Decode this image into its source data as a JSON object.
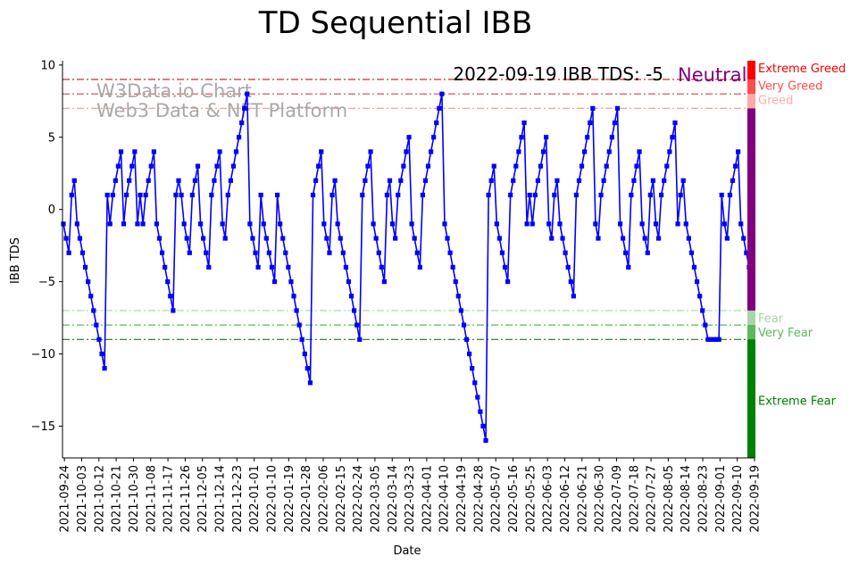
{
  "chart_data": {
    "type": "line",
    "title": "TD Sequential IBB",
    "xlabel": "Date",
    "ylabel": "IBB TDS",
    "ylim": [
      -17.2,
      10.3
    ],
    "yticks": [
      10,
      5,
      0,
      -5,
      -10,
      -15
    ],
    "x_start": "2021-09-23",
    "x_end": "2022-09-19",
    "xticks": [
      "2021-09-24",
      "2021-10-03",
      "2021-10-12",
      "2021-10-21",
      "2021-10-30",
      "2021-11-08",
      "2021-11-17",
      "2021-11-26",
      "2021-12-05",
      "2021-12-14",
      "2021-12-23",
      "2022-01-01",
      "2022-01-10",
      "2022-01-19",
      "2022-01-28",
      "2022-02-06",
      "2022-02-15",
      "2022-02-24",
      "2022-03-05",
      "2022-03-14",
      "2022-03-23",
      "2022-04-01",
      "2022-04-10",
      "2022-04-19",
      "2022-04-28",
      "2022-05-07",
      "2022-05-16",
      "2022-05-25",
      "2022-06-03",
      "2022-06-12",
      "2022-06-21",
      "2022-06-30",
      "2022-07-09",
      "2022-07-18",
      "2022-07-27",
      "2022-08-05",
      "2022-08-14",
      "2022-08-23",
      "2022-09-01",
      "2022-09-10",
      "2022-09-19"
    ],
    "series": [
      {
        "color": "#0000ff",
        "values": [
          -1,
          -2,
          -3,
          1,
          2,
          -1,
          -2,
          -3,
          -4,
          -5,
          -6,
          -7,
          -8,
          -9,
          -10,
          -11,
          1,
          -1,
          1,
          2,
          3,
          4,
          -1,
          1,
          2,
          3,
          4,
          -1,
          1,
          -1,
          1,
          2,
          3,
          4,
          -1,
          -2,
          -3,
          -4,
          -5,
          -6,
          -7,
          1,
          2,
          1,
          -1,
          -2,
          -3,
          1,
          2,
          3,
          -1,
          -2,
          -3,
          -4,
          1,
          2,
          3,
          4,
          -1,
          -2,
          1,
          2,
          3,
          4,
          5,
          6,
          7,
          8,
          -1,
          -2,
          -3,
          -4,
          1,
          -1,
          -2,
          -3,
          -4,
          -5,
          1,
          -1,
          -2,
          -3,
          -4,
          -5,
          -6,
          -7,
          -8,
          -9,
          -10,
          -11,
          -12,
          1,
          2,
          3,
          4,
          -1,
          -2,
          -3,
          1,
          2,
          -1,
          -2,
          -3,
          -4,
          -5,
          -6,
          -7,
          -8,
          -9,
          1,
          2,
          3,
          4,
          -1,
          -2,
          -3,
          -4,
          -5,
          1,
          2,
          -1,
          -2,
          1,
          2,
          3,
          4,
          5,
          -1,
          -2,
          -3,
          -4,
          1,
          2,
          3,
          4,
          5,
          6,
          7,
          8,
          -1,
          -2,
          -3,
          -4,
          -5,
          -6,
          -7,
          -8,
          -9,
          -10,
          -11,
          -12,
          -13,
          -14,
          -15,
          -16,
          1,
          2,
          3,
          -1,
          -2,
          -3,
          -4,
          -5,
          1,
          2,
          3,
          4,
          5,
          6,
          -1,
          1,
          -1,
          1,
          2,
          3,
          4,
          5,
          -1,
          -2,
          1,
          2,
          -1,
          -2,
          -3,
          -4,
          -5,
          -6,
          1,
          2,
          3,
          4,
          5,
          6,
          7,
          -1,
          -2,
          1,
          2,
          3,
          4,
          5,
          6,
          7,
          -1,
          -2,
          -3,
          -4,
          1,
          2,
          3,
          4,
          -1,
          -2,
          -3,
          1,
          2,
          -1,
          -2,
          1,
          2,
          3,
          4,
          5,
          6,
          -1,
          1,
          2,
          -1,
          -2,
          -3,
          -4,
          -5,
          -6,
          -7,
          -8,
          -9,
          -9,
          -9,
          -9,
          -9,
          1,
          -1,
          -2,
          1,
          2,
          3,
          4,
          -1,
          -2,
          -3,
          -4,
          -5
        ]
      }
    ],
    "levels": [
      {
        "value": 9,
        "color": "#d62728",
        "opacity": 1
      },
      {
        "value": 8,
        "color": "#e05555",
        "opacity": 1
      },
      {
        "value": 7,
        "color": "#f2a0a0",
        "opacity": 1
      },
      {
        "value": -7,
        "color": "#a6d6a6",
        "opacity": 1
      },
      {
        "value": -8,
        "color": "#5cb85c",
        "opacity": 1
      },
      {
        "value": -9,
        "color": "#1a7a1a",
        "opacity": 1
      }
    ],
    "side_bar": [
      {
        "from": 10.3,
        "to": 9,
        "color": "#ff0000"
      },
      {
        "from": 9,
        "to": 8,
        "color": "#ff4d4d"
      },
      {
        "from": 8,
        "to": 7,
        "color": "#ffaaaa"
      },
      {
        "from": 7,
        "to": -7,
        "color": "#800080"
      },
      {
        "from": -7,
        "to": -8,
        "color": "#a6d6a6"
      },
      {
        "from": -8,
        "to": -9,
        "color": "#5cb85c"
      },
      {
        "from": -9,
        "to": -17.2,
        "color": "#008000"
      }
    ],
    "zone_labels": [
      {
        "text": "Extreme Greed",
        "value": 9.8,
        "color": "#ff0000"
      },
      {
        "text": "Very Greed",
        "value": 8.6,
        "color": "#ff4d4d"
      },
      {
        "text": "Greed",
        "value": 7.6,
        "color": "#ffaaaa"
      },
      {
        "text": "Fear",
        "value": -7.5,
        "color": "#a6d6a6"
      },
      {
        "text": "Very Fear",
        "value": -8.5,
        "color": "#5cb85c"
      },
      {
        "text": "Extreme Fear",
        "value": -13.2,
        "color": "#008000"
      }
    ],
    "annotation": {
      "text": "2022-09-19 IBB TDS: -5",
      "status": "Neutral",
      "status_color": "#800080"
    },
    "watermark": {
      "line1": "W3Data.io Chart",
      "line2": "Web3 Data & NFT Platform"
    }
  }
}
